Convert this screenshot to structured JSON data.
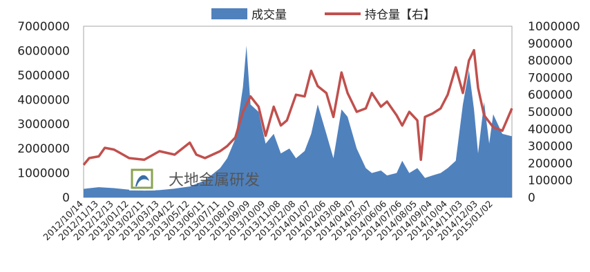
{
  "chart_data": {
    "type": "bar+line",
    "title": "",
    "legend_position": "top",
    "grid": false,
    "left_axis": {
      "ylim": [
        0,
        7000000
      ],
      "tick_labels": [
        "0",
        "1000000",
        "2000000",
        "3000000",
        "4000000",
        "5000000",
        "6000000",
        "7000000"
      ]
    },
    "right_axis": {
      "ylim": [
        0,
        1000000
      ],
      "tick_labels": [
        "0",
        "100000",
        "200000",
        "300000",
        "400000",
        "500000",
        "600000",
        "700000",
        "800000",
        "900000",
        "1000000"
      ]
    },
    "x_range": [
      "2012-10-14",
      "2015-02-08"
    ],
    "x_tick_labels": [
      "2012/10/14",
      "2012/11/13",
      "2012/12/13",
      "2013/01/12",
      "2013/02/11",
      "2013/03/13",
      "2013/04/12",
      "2013/05/12",
      "2013/06/11",
      "2013/07/11",
      "2013/08/10",
      "2013/09/09",
      "2013/10/09",
      "2013/11/08",
      "2013/12/08",
      "2014/01/07",
      "2014/02/06",
      "2014/03/08",
      "2014/04/07",
      "2014/05/07",
      "2014/06/06",
      "2014/07/06",
      "2014/08/05",
      "2014/09/04",
      "2014/10/04",
      "2014/11/03",
      "2014/12/03",
      "2015/01/02"
    ],
    "series": [
      {
        "name": "成交量",
        "axis": "left",
        "kind": "area",
        "color": "#4f81bd",
        "points": [
          [
            "2012-10-14",
            350000
          ],
          [
            "2012-11-13",
            420000
          ],
          [
            "2012-12-13",
            380000
          ],
          [
            "2013-01-12",
            320000
          ],
          [
            "2013-02-11",
            280000
          ],
          [
            "2013-03-13",
            300000
          ],
          [
            "2013-04-12",
            360000
          ],
          [
            "2013-05-12",
            450000
          ],
          [
            "2013-06-11",
            700000
          ],
          [
            "2013-07-11",
            1200000
          ],
          [
            "2013-07-25",
            1600000
          ],
          [
            "2013-08-10",
            2400000
          ],
          [
            "2013-08-25",
            4500000
          ],
          [
            "2013-09-01",
            6200000
          ],
          [
            "2013-09-09",
            3800000
          ],
          [
            "2013-09-25",
            3500000
          ],
          [
            "2013-10-09",
            2200000
          ],
          [
            "2013-10-25",
            2600000
          ],
          [
            "2013-11-08",
            1800000
          ],
          [
            "2013-11-25",
            2000000
          ],
          [
            "2013-12-08",
            1600000
          ],
          [
            "2013-12-25",
            1900000
          ],
          [
            "2014-01-07",
            2600000
          ],
          [
            "2014-01-20",
            3800000
          ],
          [
            "2014-02-06",
            2600000
          ],
          [
            "2014-02-20",
            1600000
          ],
          [
            "2014-03-08",
            3600000
          ],
          [
            "2014-03-20",
            3300000
          ],
          [
            "2014-04-07",
            2000000
          ],
          [
            "2014-04-25",
            1200000
          ],
          [
            "2014-05-07",
            1000000
          ],
          [
            "2014-05-25",
            1100000
          ],
          [
            "2014-06-06",
            900000
          ],
          [
            "2014-06-25",
            1000000
          ],
          [
            "2014-07-06",
            1500000
          ],
          [
            "2014-07-20",
            1000000
          ],
          [
            "2014-08-05",
            1200000
          ],
          [
            "2014-08-20",
            800000
          ],
          [
            "2014-09-04",
            900000
          ],
          [
            "2014-09-20",
            1000000
          ],
          [
            "2014-10-04",
            1200000
          ],
          [
            "2014-10-20",
            1500000
          ],
          [
            "2014-11-03",
            3800000
          ],
          [
            "2014-11-15",
            5200000
          ],
          [
            "2014-11-25",
            3600000
          ],
          [
            "2014-12-03",
            1800000
          ],
          [
            "2014-12-15",
            3900000
          ],
          [
            "2014-12-25",
            2200000
          ],
          [
            "2015-01-02",
            3400000
          ],
          [
            "2015-01-20",
            2600000
          ],
          [
            "2015-02-08",
            2500000
          ]
        ]
      },
      {
        "name": "持仓量【右】",
        "axis": "right",
        "kind": "line",
        "color": "#c0504d",
        "points": [
          [
            "2012-10-14",
            190000
          ],
          [
            "2012-10-25",
            230000
          ],
          [
            "2012-11-13",
            240000
          ],
          [
            "2012-11-25",
            290000
          ],
          [
            "2012-12-13",
            280000
          ],
          [
            "2012-12-25",
            260000
          ],
          [
            "2013-01-12",
            230000
          ],
          [
            "2013-02-11",
            220000
          ],
          [
            "2013-03-13",
            270000
          ],
          [
            "2013-04-12",
            250000
          ],
          [
            "2013-05-12",
            320000
          ],
          [
            "2013-05-25",
            250000
          ],
          [
            "2013-06-11",
            230000
          ],
          [
            "2013-07-11",
            270000
          ],
          [
            "2013-07-25",
            300000
          ],
          [
            "2013-08-10",
            350000
          ],
          [
            "2013-08-25",
            500000
          ],
          [
            "2013-09-09",
            590000
          ],
          [
            "2013-09-25",
            530000
          ],
          [
            "2013-10-09",
            360000
          ],
          [
            "2013-10-25",
            530000
          ],
          [
            "2013-11-08",
            420000
          ],
          [
            "2013-11-20",
            450000
          ],
          [
            "2013-12-08",
            600000
          ],
          [
            "2013-12-25",
            590000
          ],
          [
            "2014-01-07",
            740000
          ],
          [
            "2014-01-20",
            650000
          ],
          [
            "2014-02-06",
            610000
          ],
          [
            "2014-02-20",
            470000
          ],
          [
            "2014-03-08",
            730000
          ],
          [
            "2014-03-20",
            610000
          ],
          [
            "2014-04-07",
            500000
          ],
          [
            "2014-04-25",
            520000
          ],
          [
            "2014-05-07",
            610000
          ],
          [
            "2014-05-25",
            530000
          ],
          [
            "2014-06-06",
            560000
          ],
          [
            "2014-06-25",
            480000
          ],
          [
            "2014-07-06",
            420000
          ],
          [
            "2014-07-20",
            500000
          ],
          [
            "2014-08-05",
            450000
          ],
          [
            "2014-08-12",
            220000
          ],
          [
            "2014-08-20",
            470000
          ],
          [
            "2014-09-04",
            490000
          ],
          [
            "2014-09-20",
            520000
          ],
          [
            "2014-10-04",
            600000
          ],
          [
            "2014-10-20",
            760000
          ],
          [
            "2014-11-03",
            610000
          ],
          [
            "2014-11-15",
            800000
          ],
          [
            "2014-11-25",
            860000
          ],
          [
            "2014-12-03",
            640000
          ],
          [
            "2014-12-15",
            480000
          ],
          [
            "2015-01-02",
            410000
          ],
          [
            "2015-01-20",
            390000
          ],
          [
            "2015-02-08",
            520000
          ]
        ]
      }
    ],
    "watermark": {
      "text": "大地金属研发",
      "has_logo": true
    }
  }
}
